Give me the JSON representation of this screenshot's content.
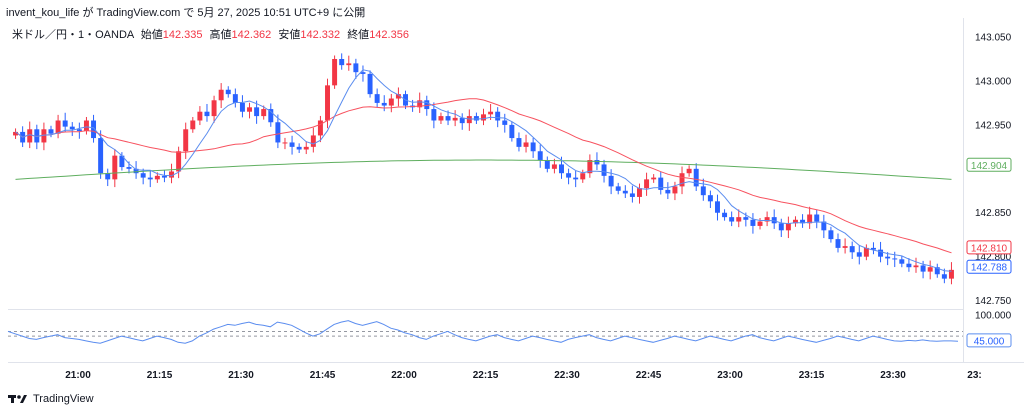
{
  "header": {
    "text": "invent_kou_life が TradingView.com で 5月 27, 2025 10:51 UTC+9 に公開"
  },
  "legend": {
    "symbol": "米ドル／円・1・OANDA",
    "open_label": "始値",
    "open": "142.335",
    "high_label": "高値",
    "high": "142.362",
    "low_label": "安値",
    "low": "142.332",
    "close_label": "終値",
    "close": "142.356"
  },
  "footer": {
    "brand": "TradingView"
  },
  "colors": {
    "up": "#f23645",
    "down": "#2962ff",
    "ma_fast": "#5b8def",
    "ma_mid": "#f7525f",
    "ma_slow": "#5fae5f",
    "osc": "#5b8def",
    "osc_band": "#9598a1"
  },
  "chart_data": {
    "type": "candlestick",
    "price_axis": {
      "ticks": [
        "143.050",
        "143.000",
        "142.950",
        "142.850",
        "142.800",
        "142.750"
      ],
      "ylim": [
        142.745,
        143.058
      ]
    },
    "time_axis": {
      "ticks": [
        "21:00",
        "21:15",
        "21:30",
        "21:45",
        "22:00",
        "22:15",
        "22:30",
        "22:45",
        "23:00",
        "23:15",
        "23:30",
        "23:"
      ]
    },
    "price_tags": [
      {
        "value": "142.904",
        "color": "#5fae5f"
      },
      {
        "value": "142.810",
        "color": "#f23645"
      },
      {
        "value": "142.788",
        "color": "#2962ff"
      }
    ],
    "close": [
      142.942,
      142.93,
      142.945,
      142.93,
      142.945,
      142.94,
      142.955,
      142.948,
      142.945,
      142.943,
      142.955,
      142.935,
      142.895,
      142.888,
      142.915,
      142.902,
      142.9,
      142.895,
      142.89,
      142.888,
      142.892,
      142.89,
      142.897,
      142.92,
      142.945,
      142.955,
      142.965,
      142.96,
      142.978,
      142.99,
      142.985,
      142.975,
      142.965,
      142.97,
      142.96,
      142.968,
      142.953,
      142.93,
      142.93,
      142.925,
      142.922,
      142.925,
      142.938,
      142.955,
      142.995,
      143.025,
      143.018,
      143.02,
      143.01,
      143.008,
      142.985,
      142.975,
      142.972,
      142.98,
      142.985,
      142.972,
      142.97,
      142.978,
      142.968,
      142.955,
      142.96,
      142.955,
      142.958,
      142.952,
      142.96,
      142.955,
      142.962,
      142.965,
      142.955,
      142.95,
      142.935,
      142.925,
      142.93,
      142.92,
      142.91,
      142.9,
      142.905,
      142.895,
      142.89,
      142.888,
      142.895,
      142.91,
      142.905,
      142.892,
      142.88,
      142.875,
      142.872,
      142.868,
      142.878,
      142.888,
      142.89,
      142.876,
      142.872,
      142.88,
      142.895,
      142.9,
      142.88,
      142.87,
      142.863,
      142.85,
      142.845,
      142.84,
      142.845,
      142.842,
      142.835,
      142.84,
      142.845,
      142.838,
      142.83,
      142.838,
      142.842,
      142.838,
      142.848,
      142.84,
      142.83,
      142.82,
      142.81,
      142.812,
      142.805,
      142.8,
      142.81,
      142.808,
      142.8,
      142.798,
      142.797,
      142.792,
      142.788,
      142.79,
      142.783,
      142.788,
      142.78,
      142.775,
      142.785
    ],
    "oscillator": {
      "ticks": [
        "100.000"
      ],
      "band_upper": 65,
      "band_lower": 55,
      "last": "45.000",
      "values": [
        65,
        60,
        55,
        50,
        48,
        52,
        55,
        58,
        52,
        50,
        48,
        45,
        42,
        40,
        45,
        50,
        55,
        52,
        48,
        45,
        50,
        55,
        52,
        48,
        42,
        40,
        45,
        55,
        62,
        70,
        75,
        80,
        78,
        82,
        85,
        80,
        78,
        75,
        85,
        82,
        78,
        70,
        62,
        55,
        60,
        70,
        80,
        85,
        88,
        82,
        78,
        82,
        86,
        80,
        72,
        68,
        62,
        58,
        52,
        48,
        55,
        60,
        65,
        58,
        52,
        48,
        45,
        50,
        55,
        58,
        52,
        48,
        45,
        50,
        55,
        52,
        48,
        45,
        42,
        48,
        52,
        55,
        58,
        52,
        48,
        45,
        50,
        55,
        52,
        48,
        45,
        42,
        46,
        50,
        55,
        52,
        48,
        45,
        50,
        55,
        52,
        48,
        45,
        50,
        55,
        58,
        52,
        48,
        45,
        50,
        55,
        52,
        48,
        45,
        42,
        46,
        50,
        55,
        52,
        48,
        45,
        50,
        55,
        52,
        48,
        45,
        44,
        46,
        45,
        47,
        45,
        44,
        45,
        45,
        44
      ]
    }
  }
}
